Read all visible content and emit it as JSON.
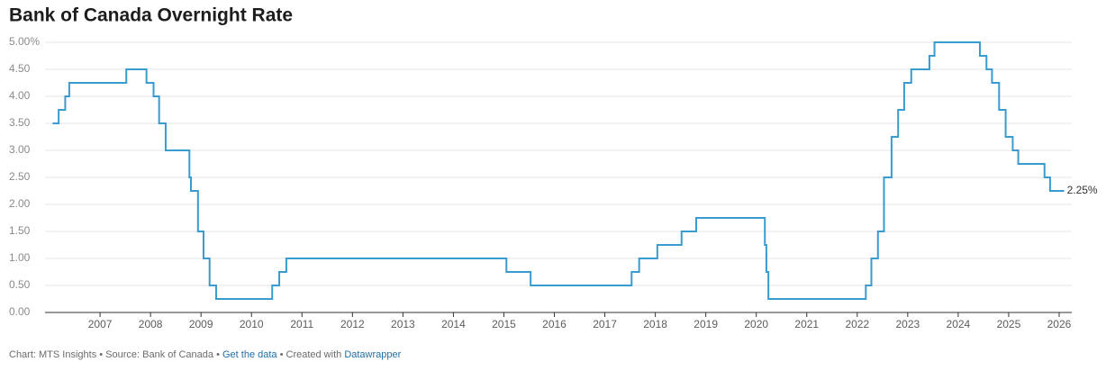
{
  "chart_data": {
    "type": "step-line",
    "title": "Bank of Canada Overnight Rate",
    "footer": [
      "Chart: MTS Insights • Source: Bank of Canada • ",
      "Get the data",
      " • Created with ",
      "Datawrapper"
    ],
    "xlim": [
      2005.91,
      2026.25
    ],
    "xticks": [
      2007,
      2008,
      2009,
      2010,
      2011,
      2012,
      2013,
      2014,
      2015,
      2016,
      2017,
      2018,
      2019,
      2020,
      2021,
      2022,
      2023,
      2024,
      2025,
      2026
    ],
    "ylim": [
      0,
      5
    ],
    "yticks": [
      {
        "value": 0,
        "label": "0.00"
      },
      {
        "value": 0.5,
        "label": "0.50"
      },
      {
        "value": 1,
        "label": "1.00"
      },
      {
        "value": 1.5,
        "label": "1.50"
      },
      {
        "value": 2,
        "label": "2.00"
      },
      {
        "value": 2.5,
        "label": "2.50"
      },
      {
        "value": 3,
        "label": "3.00"
      },
      {
        "value": 3.5,
        "label": "3.50"
      },
      {
        "value": 4,
        "label": "4.00"
      },
      {
        "value": 4.5,
        "label": "4.50"
      },
      {
        "value": 5,
        "label": "5.00%"
      }
    ],
    "grid": true,
    "color": "#3a9bcf",
    "x": [
      2006.06,
      2006.18,
      2006.31,
      2006.39,
      2007.52,
      2007.92,
      2008.06,
      2008.17,
      2008.3,
      2008.77,
      2008.8,
      2008.94,
      2009.05,
      2009.17,
      2009.3,
      2010.41,
      2010.55,
      2010.69,
      2015.05,
      2015.53,
      2017.53,
      2017.68,
      2018.04,
      2018.52,
      2018.81,
      2020.17,
      2020.2,
      2020.24,
      2022.17,
      2022.28,
      2022.41,
      2022.53,
      2022.68,
      2022.81,
      2022.93,
      2023.07,
      2023.43,
      2023.53,
      2024.43,
      2024.56,
      2024.67,
      2024.81,
      2024.94,
      2025.08,
      2025.19,
      2025.71,
      2025.82,
      2026.1
    ],
    "values": [
      3.5,
      3.75,
      4,
      4.25,
      4.5,
      4.25,
      4,
      3.5,
      3,
      2.5,
      2.25,
      1.5,
      1,
      0.5,
      0.25,
      0.5,
      0.75,
      1,
      0.75,
      0.5,
      0.75,
      1,
      1.25,
      1.5,
      1.75,
      1.25,
      0.75,
      0.25,
      0.5,
      1,
      1.5,
      2.5,
      3.25,
      3.75,
      4.25,
      4.5,
      4.75,
      5,
      4.75,
      4.5,
      4.25,
      3.75,
      3.25,
      3,
      2.75,
      2.5,
      2.25,
      2.25
    ],
    "value_labels": [
      null,
      null,
      null,
      null,
      null,
      null,
      null,
      null,
      null,
      null,
      null,
      null,
      null,
      null,
      null,
      null,
      null,
      null,
      null,
      null,
      null,
      null,
      null,
      null,
      null,
      null,
      null,
      null,
      null,
      null,
      null,
      null,
      null,
      null,
      null,
      null,
      null,
      null,
      null,
      null,
      null,
      null,
      null,
      null,
      null,
      null,
      null,
      "2.25%"
    ]
  }
}
